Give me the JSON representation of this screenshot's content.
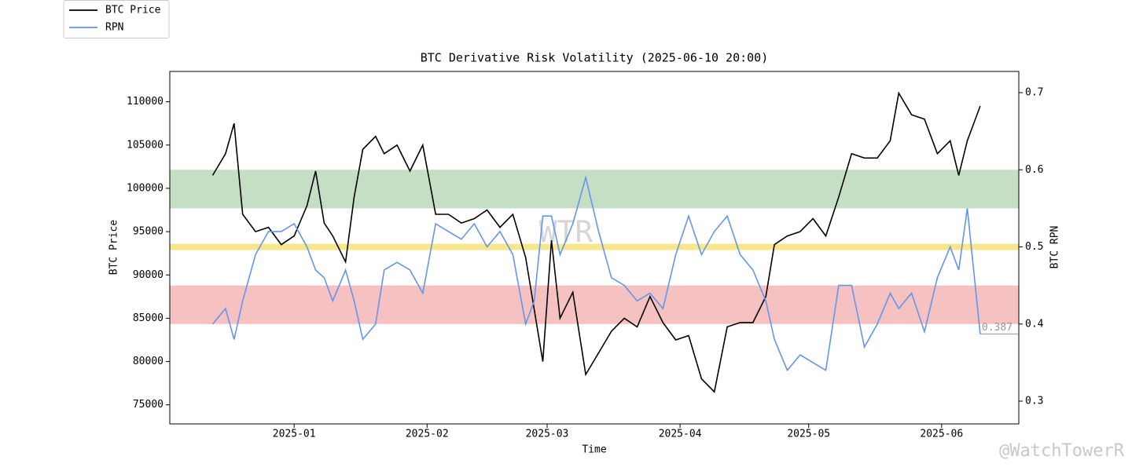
{
  "chart_data": {
    "type": "line",
    "title": "BTC Derivative Risk Volatility (2025-06-10 20:00)",
    "x_label": "Time",
    "y_label": "BTC Price",
    "y2_label": "BTC RPN",
    "watermarks": [
      "WTR",
      "@WatchTowerR"
    ],
    "x": [
      "2024-12-13",
      "2024-12-16",
      "2024-12-18",
      "2024-12-20",
      "2024-12-23",
      "2024-12-26",
      "2024-12-29",
      "2025-01-01",
      "2025-01-04",
      "2025-01-06",
      "2025-01-08",
      "2025-01-10",
      "2025-01-13",
      "2025-01-15",
      "2025-01-17",
      "2025-01-20",
      "2025-01-22",
      "2025-01-25",
      "2025-01-28",
      "2025-01-31",
      "2025-02-03",
      "2025-02-06",
      "2025-02-09",
      "2025-02-12",
      "2025-02-15",
      "2025-02-18",
      "2025-02-21",
      "2025-02-24",
      "2025-02-26",
      "2025-02-28",
      "2025-03-02",
      "2025-03-04",
      "2025-03-07",
      "2025-03-10",
      "2025-03-13",
      "2025-03-16",
      "2025-03-19",
      "2025-03-22",
      "2025-03-25",
      "2025-03-28",
      "2025-03-31",
      "2025-04-03",
      "2025-04-06",
      "2025-04-09",
      "2025-04-12",
      "2025-04-15",
      "2025-04-18",
      "2025-04-21",
      "2025-04-23",
      "2025-04-26",
      "2025-04-29",
      "2025-05-02",
      "2025-05-05",
      "2025-05-08",
      "2025-05-11",
      "2025-05-14",
      "2025-05-17",
      "2025-05-20",
      "2025-05-22",
      "2025-05-25",
      "2025-05-28",
      "2025-05-31",
      "2025-06-03",
      "2025-06-05",
      "2025-06-07",
      "2025-06-10"
    ],
    "series": [
      {
        "name": "BTC Price",
        "color": "#000000",
        "axis": "y",
        "values": [
          101500,
          104000,
          107500,
          97000,
          95000,
          95500,
          93500,
          94500,
          98000,
          102000,
          96000,
          94500,
          91500,
          99000,
          104500,
          106000,
          104000,
          105000,
          102000,
          105000,
          97000,
          97000,
          96000,
          96500,
          97500,
          95500,
          97000,
          92000,
          86000,
          80000,
          94000,
          85000,
          88000,
          78500,
          81000,
          83500,
          85000,
          84000,
          87500,
          84500,
          82500,
          83000,
          78000,
          76500,
          84000,
          84500,
          84500,
          87500,
          93500,
          94500,
          95000,
          96500,
          94500,
          99000,
          104000,
          103500,
          103500,
          105500,
          111000,
          108500,
          108000,
          104000,
          105500,
          101500,
          105500,
          109500
        ]
      },
      {
        "name": "RPN",
        "color": "#6495ed",
        "axis": "y2",
        "values": [
          0.4,
          0.42,
          0.38,
          0.43,
          0.49,
          0.52,
          0.52,
          0.53,
          0.5,
          0.47,
          0.46,
          0.43,
          0.47,
          0.43,
          0.38,
          0.4,
          0.47,
          0.48,
          0.47,
          0.44,
          0.53,
          0.52,
          0.51,
          0.53,
          0.5,
          0.52,
          0.49,
          0.4,
          0.43,
          0.54,
          0.54,
          0.49,
          0.53,
          0.59,
          0.52,
          0.46,
          0.45,
          0.43,
          0.44,
          0.42,
          0.49,
          0.54,
          0.49,
          0.52,
          0.54,
          0.49,
          0.47,
          0.43,
          0.38,
          0.34,
          0.36,
          0.35,
          0.34,
          0.45,
          0.45,
          0.37,
          0.4,
          0.44,
          0.42,
          0.44,
          0.39,
          0.46,
          0.5,
          0.47,
          0.55,
          0.387
        ]
      }
    ],
    "bands": [
      {
        "range": [
          0.55,
          0.6
        ],
        "color": "#c5dfc5"
      },
      {
        "range": [
          0.496,
          0.504
        ],
        "color": "#f7e68a"
      },
      {
        "range": [
          0.4,
          0.45
        ],
        "color": "#f5c1c1"
      }
    ],
    "xlim": [
      "2024-12-03",
      "2025-06-19"
    ],
    "xticks": [
      {
        "value": "2025-01-01",
        "label": "2025-01"
      },
      {
        "value": "2025-02-01",
        "label": "2025-02"
      },
      {
        "value": "2025-03-01",
        "label": "2025-03"
      },
      {
        "value": "2025-04-01",
        "label": "2025-04"
      },
      {
        "value": "2025-05-01",
        "label": "2025-05"
      },
      {
        "value": "2025-06-01",
        "label": "2025-06"
      }
    ],
    "ylim": [
      72800,
      113500
    ],
    "yticks": [
      75000,
      80000,
      85000,
      90000,
      95000,
      100000,
      105000,
      110000
    ],
    "y2lim": [
      0.2705,
      0.7275
    ],
    "y2ticks": [
      0.3,
      0.4,
      0.5,
      0.6,
      0.7
    ],
    "legend": "top-left-outside"
  }
}
